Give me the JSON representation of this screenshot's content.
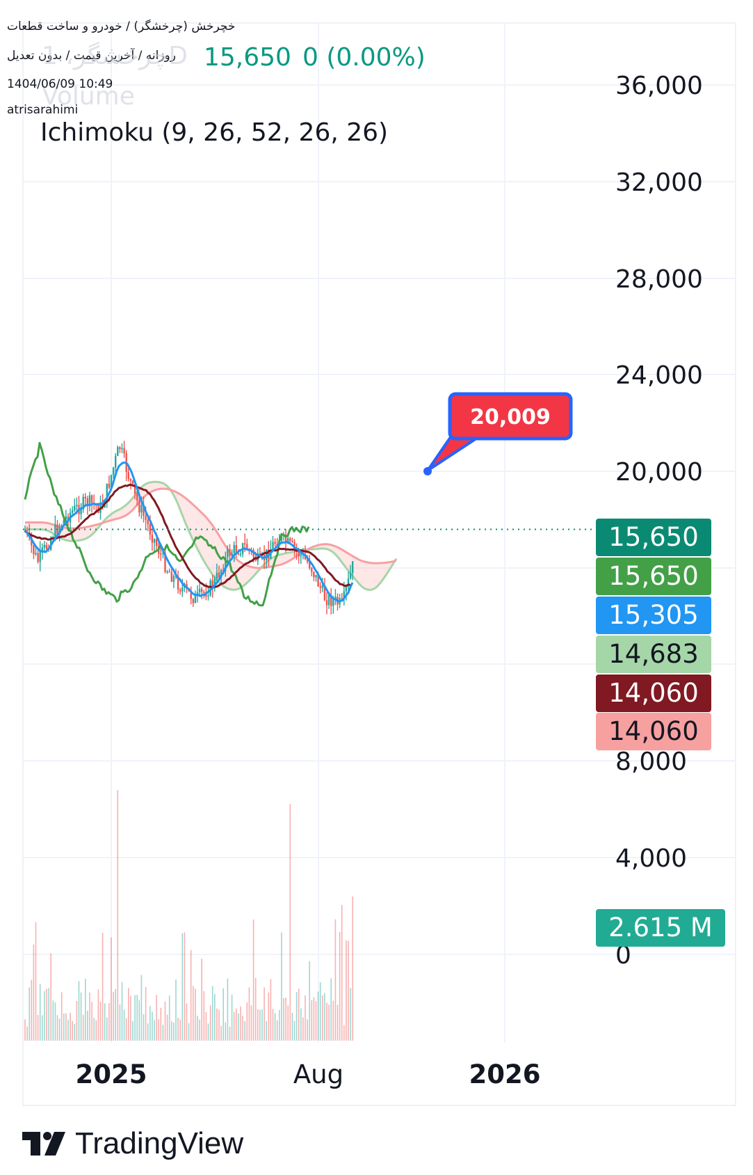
{
  "header": {
    "symbol_line": "خچرخش (چرخشگر) / خودرو و ساخت قطعات",
    "timeframe_line": "روزانه / آخرین قیمت / بدون تعدیل",
    "ghost_symbol": "چرخشگر، 1D",
    "last_price": "15,650",
    "change": "0 (0.00%)",
    "datetime": "1404/06/09 10:49",
    "author": "atrisarahimi",
    "ghost_volume": "Volume",
    "study_label": "Ichimoku (9, 26, 52, 26, 26)"
  },
  "price_axis": {
    "ticks": [
      "36,000",
      "32,000",
      "28,000",
      "24,000",
      "20,000",
      "8,000"
    ]
  },
  "volume_axis": {
    "ticks": [
      "4,000",
      "0"
    ]
  },
  "time_axis": {
    "labels": [
      "2025",
      "Aug",
      "2026"
    ]
  },
  "badges": [
    {
      "text": "15,650",
      "bg": "#0b8a73",
      "fg": "#ffffff"
    },
    {
      "text": "15,650",
      "bg": "#43a047",
      "fg": "#ffffff"
    },
    {
      "text": "15,305",
      "bg": "#2196f3",
      "fg": "#ffffff"
    },
    {
      "text": "14,683",
      "bg": "#a5d6a7",
      "fg": "#131722"
    },
    {
      "text": "14,060",
      "bg": "#801922",
      "fg": "#ffffff"
    },
    {
      "text": "14,060",
      "bg": "#f7a0a0",
      "fg": "#131722"
    }
  ],
  "volume_badge": {
    "text": "2.615 M",
    "bg": "#22ab94",
    "fg": "#ffffff"
  },
  "annotation": {
    "text": "20,009",
    "bg": "#f23645",
    "border": "#2962ff"
  },
  "branding": {
    "name": "TradingView"
  },
  "colors": {
    "up": "#26a69a",
    "down": "#ef5350",
    "tenkan": "#2196f3",
    "kijun": "#801922",
    "chikou": "#43a047",
    "span_a": "#a5d6a7",
    "span_b": "#f7a0a0",
    "last_price_line": "#0b8a73"
  },
  "chart_data": {
    "type": "candlestick",
    "symbol": "چرخشگر",
    "interval": "1D",
    "x_range": [
      "2024-10",
      "2026-02"
    ],
    "price_ylim": [
      8000,
      36000
    ],
    "last_price": 15650,
    "indicator": "Ichimoku (9, 26, 52, 26, 26)",
    "ichimoku_last": {
      "lead_1": 14683,
      "lead_2": 14060,
      "tenkan": 15305,
      "kijun": 14060,
      "chikou": 15650
    },
    "annotation_price": 20009,
    "close_series": {
      "dates": [
        "2024-10-01",
        "2024-10-15",
        "2024-11-01",
        "2024-11-15",
        "2024-12-01",
        "2024-12-15",
        "2025-01-01",
        "2025-01-05",
        "2025-01-15",
        "2025-02-01",
        "2025-02-15",
        "2025-03-01",
        "2025-03-15",
        "2025-04-01",
        "2025-04-15",
        "2025-05-01",
        "2025-05-15",
        "2025-06-01",
        "2025-06-15",
        "2025-07-01",
        "2025-07-15",
        "2025-07-25",
        "2025-08-01",
        "2025-08-10",
        "2025-08-20",
        "2025-08-31"
      ],
      "values": [
        15800,
        14200,
        15600,
        16400,
        16900,
        16600,
        19400,
        18800,
        17200,
        15400,
        13900,
        13000,
        12500,
        13200,
        14600,
        14900,
        14100,
        15300,
        14800,
        14100,
        12600,
        12400,
        12200,
        13800,
        15400,
        15650
      ]
    },
    "volume_ylim": [
      0,
      6000
    ],
    "volume_last": "2.615 M"
  }
}
